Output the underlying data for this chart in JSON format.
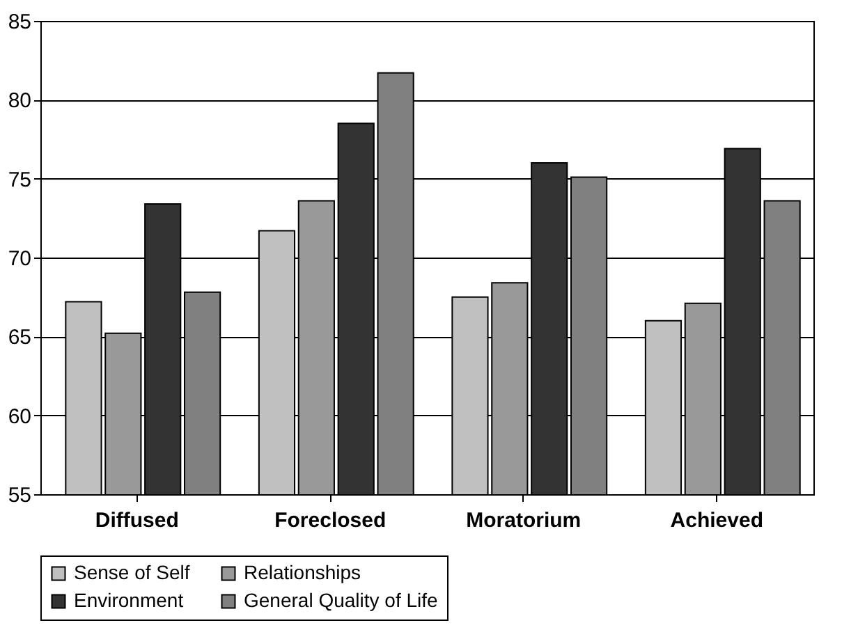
{
  "chart_data": {
    "type": "bar",
    "categories": [
      "Diffused",
      "Foreclosed",
      "Moratorium",
      "Achieved"
    ],
    "series": [
      {
        "name": "Sense of Self",
        "color": "#c0c0c0",
        "values": [
          67.2,
          71.7,
          67.5,
          66.0
        ]
      },
      {
        "name": "Relationships",
        "color": "#999999",
        "values": [
          65.2,
          73.6,
          68.4,
          67.1
        ]
      },
      {
        "name": "Environment",
        "color": "#333333",
        "values": [
          73.4,
          78.5,
          76.0,
          76.9
        ]
      },
      {
        "name": "General Quality of Life",
        "color": "#808080",
        "values": [
          67.8,
          81.7,
          75.1,
          73.6
        ]
      }
    ],
    "ylim": [
      55,
      85
    ],
    "yticks": [
      55,
      60,
      65,
      70,
      75,
      80,
      85
    ],
    "grid": "y",
    "legend": "bottom"
  }
}
